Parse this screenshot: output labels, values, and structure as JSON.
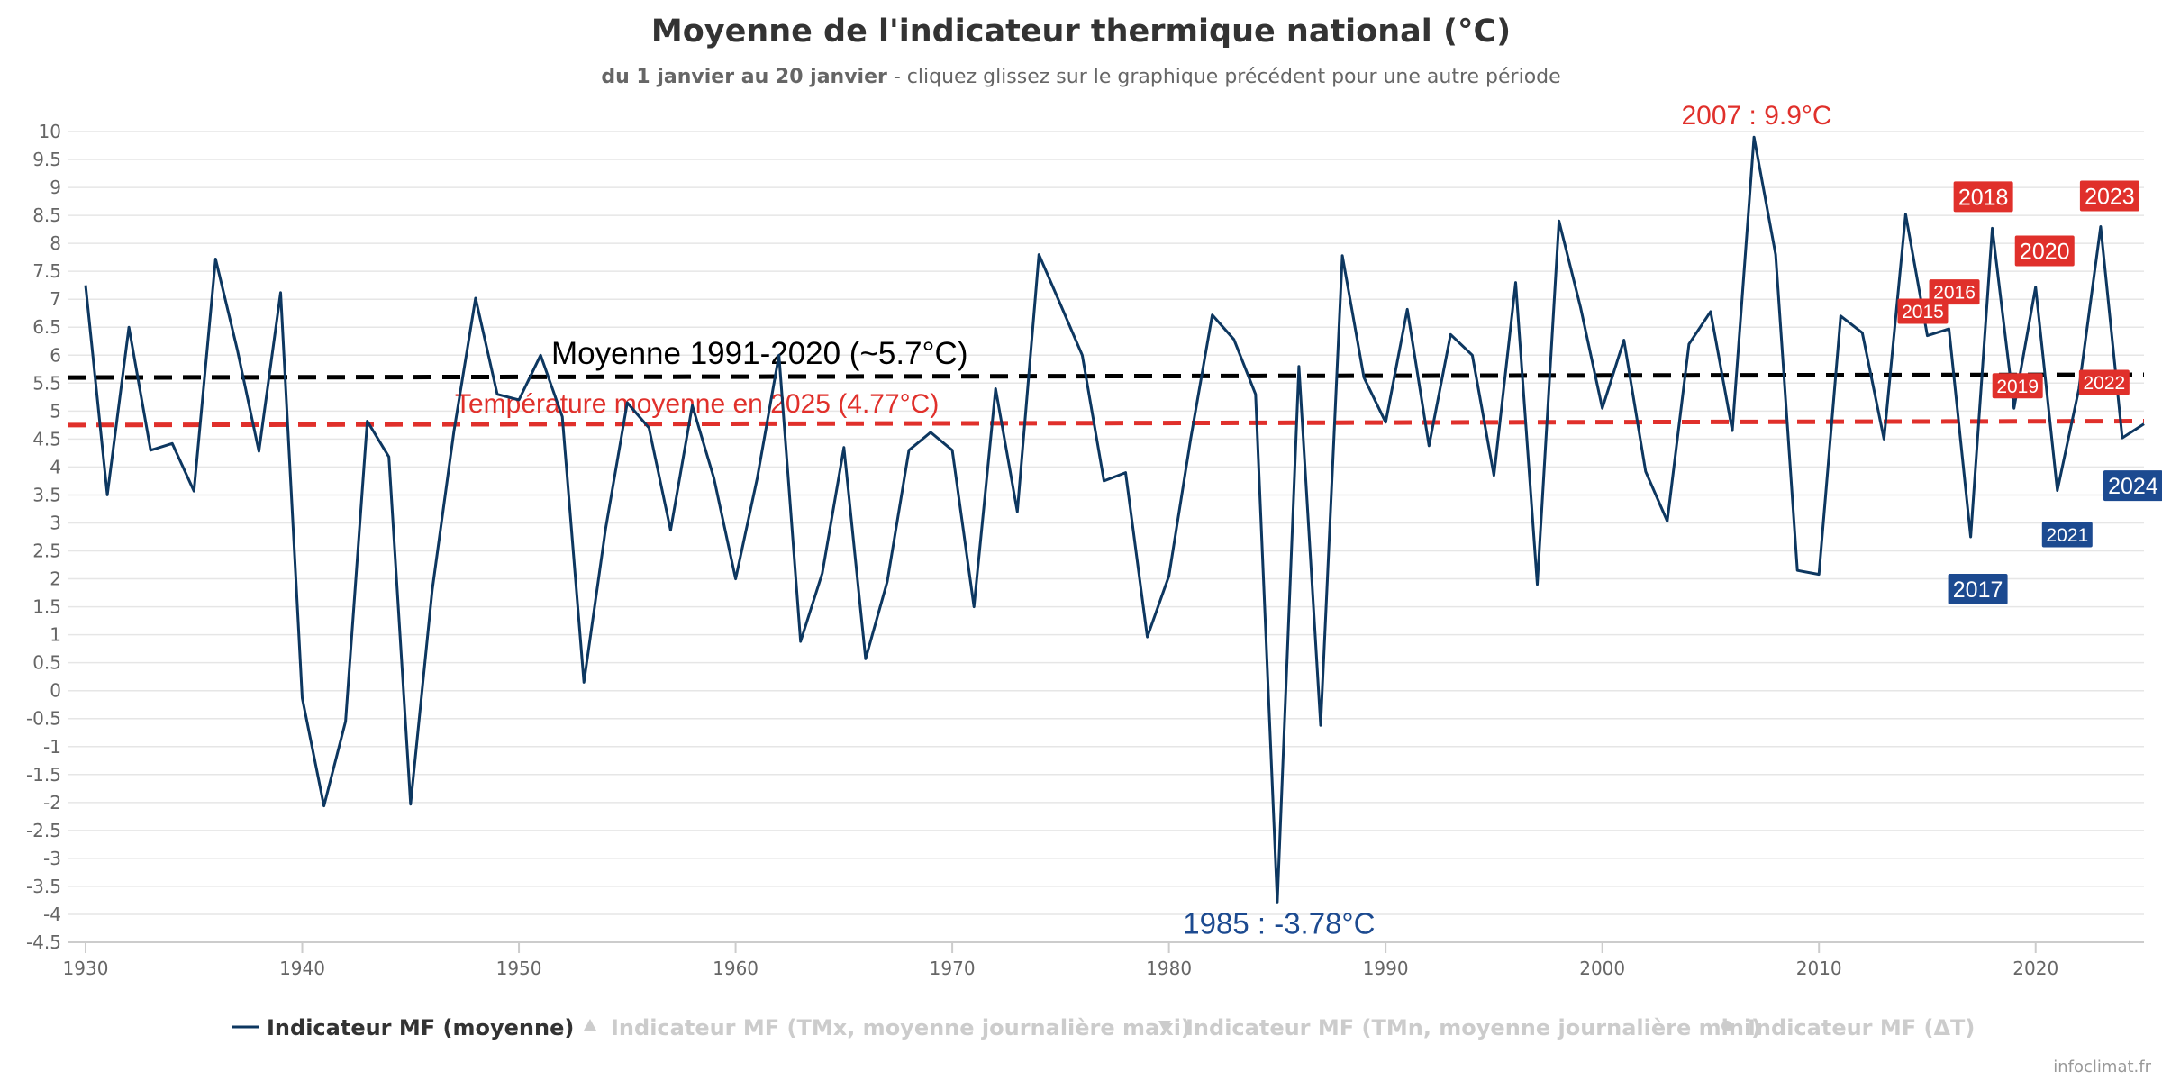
{
  "chart_data": {
    "type": "line",
    "title": "Moyenne de l'indicateur thermique national (°C)",
    "subtitle_bold": "du 1 janvier au 20 janvier",
    "subtitle_rest": " - cliquez glissez sur le graphique précédent pour une autre période",
    "xlim": [
      1930,
      2025
    ],
    "ylim": [
      -4.5,
      10
    ],
    "x_ticks": [
      1930,
      1940,
      1950,
      1960,
      1970,
      1980,
      1990,
      2000,
      2010,
      2020
    ],
    "y_ticks": [
      10,
      9.5,
      9,
      8.5,
      8,
      7.5,
      7,
      6.5,
      6,
      5.5,
      5,
      4.5,
      4,
      3.5,
      3,
      2.5,
      2,
      1.5,
      1,
      0.5,
      0,
      -0.5,
      -1,
      -1.5,
      -2,
      -2.5,
      -3,
      -3.5,
      -4,
      -4.5
    ],
    "grid": true,
    "x": [
      1930,
      1931,
      1932,
      1933,
      1934,
      1935,
      1936,
      1937,
      1938,
      1939,
      1940,
      1941,
      1942,
      1943,
      1944,
      1945,
      1946,
      1947,
      1948,
      1949,
      1950,
      1951,
      1952,
      1953,
      1954,
      1955,
      1956,
      1957,
      1958,
      1959,
      1960,
      1961,
      1962,
      1963,
      1964,
      1965,
      1966,
      1967,
      1968,
      1969,
      1970,
      1971,
      1972,
      1973,
      1974,
      1975,
      1976,
      1977,
      1978,
      1979,
      1980,
      1981,
      1982,
      1983,
      1984,
      1985,
      1986,
      1987,
      1988,
      1989,
      1990,
      1991,
      1992,
      1993,
      1994,
      1995,
      1996,
      1997,
      1998,
      1999,
      2000,
      2001,
      2002,
      2003,
      2004,
      2005,
      2006,
      2007,
      2008,
      2009,
      2010,
      2011,
      2012,
      2013,
      2014,
      2015,
      2016,
      2017,
      2018,
      2019,
      2020,
      2021,
      2022,
      2023,
      2024,
      2025
    ],
    "series": [
      {
        "name": "Indicateur MF (moyenne)",
        "color": "#0d3760",
        "values": [
          7.25,
          3.5,
          6.5,
          4.3,
          4.42,
          3.57,
          7.72,
          6.1,
          4.28,
          7.12,
          -0.13,
          -2.06,
          -0.55,
          4.82,
          4.18,
          -2.03,
          1.8,
          4.64,
          7.02,
          5.3,
          5.2,
          6.0,
          4.9,
          0.15,
          2.9,
          5.15,
          4.7,
          2.87,
          5.1,
          3.8,
          2.0,
          3.8,
          6.0,
          0.88,
          2.1,
          4.35,
          0.57,
          1.95,
          4.3,
          4.62,
          4.3,
          1.5,
          5.4,
          3.2,
          7.8,
          6.9,
          6.0,
          3.75,
          3.9,
          0.96,
          2.05,
          4.5,
          6.72,
          6.28,
          5.3,
          -3.78,
          5.8,
          -0.62,
          7.78,
          5.6,
          4.8,
          6.82,
          4.38,
          6.37,
          6.0,
          3.85,
          7.3,
          1.9,
          8.4,
          6.85,
          5.05,
          6.27,
          3.92,
          3.03,
          6.2,
          6.78,
          4.65,
          9.9,
          7.8,
          2.15,
          2.08,
          6.7,
          6.4,
          4.5,
          8.52,
          6.35,
          6.47,
          2.75,
          8.27,
          5.05,
          7.22,
          3.58,
          5.4,
          8.3,
          4.52,
          4.77
        ]
      }
    ],
    "reference_lines": [
      {
        "label": "Moyenne 1991-2020 (~5.7°C)",
        "y_start": 5.6,
        "y_end": 5.65,
        "color": "#000000"
      },
      {
        "label": "Température moyenne en 2025 (4.77°C)",
        "y_start": 4.75,
        "y_end": 4.82,
        "color": "#e0302b"
      }
    ],
    "annotations": [
      {
        "text": "2007 : 9.9°C",
        "x": 2007,
        "y": 9.9,
        "style": "text-red"
      },
      {
        "text": "1985 : -3.78°C",
        "x": 1985,
        "y": -3.78,
        "style": "text-blue"
      },
      {
        "text": "2018",
        "x": 2018,
        "y": 8.27,
        "style": "box-red-large"
      },
      {
        "text": "2023",
        "x": 2023,
        "y": 8.3,
        "style": "box-red-large"
      },
      {
        "text": "2020",
        "x": 2020,
        "y": 7.22,
        "style": "box-red-large"
      },
      {
        "text": "2016",
        "x": 2016,
        "y": 6.47,
        "style": "box-red-small"
      },
      {
        "text": "2015",
        "x": 2015,
        "y": 6.35,
        "style": "box-red-small"
      },
      {
        "text": "2022",
        "x": 2022,
        "y": 5.4,
        "style": "box-red-small"
      },
      {
        "text": "2019",
        "x": 2019,
        "y": 5.05,
        "style": "box-red-small"
      },
      {
        "text": "2024",
        "x": 2024,
        "y": 4.52,
        "style": "box-blue-large"
      },
      {
        "text": "2021",
        "x": 2021,
        "y": 3.58,
        "style": "box-blue-small"
      },
      {
        "text": "2017",
        "x": 2017,
        "y": 2.75,
        "style": "box-blue-large"
      }
    ],
    "legend": {
      "placement": "bottom",
      "items": [
        {
          "label": "Indicateur MF (moyenne)",
          "symbol": "line",
          "active": true,
          "color": "#0d3760"
        },
        {
          "label": "Indicateur MF (TMx, moyenne journalière maxi)",
          "symbol": "triangle-up",
          "active": false,
          "color": "#cccccc"
        },
        {
          "label": "Indicateur MF (TMn, moyenne journalière mini)",
          "symbol": "triangle-down",
          "active": false,
          "color": "#cccccc"
        },
        {
          "label": "Indicateur MF (ΔT)",
          "symbol": "circle",
          "active": false,
          "color": "#cccccc"
        }
      ]
    }
  },
  "credit": "infoclimat.fr"
}
